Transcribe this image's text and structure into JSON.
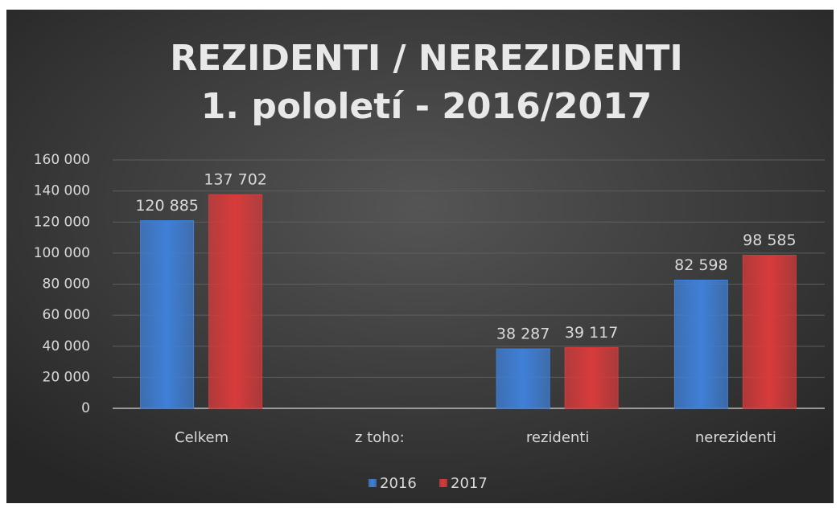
{
  "chart_data": {
    "type": "bar",
    "title": [
      "REZIDENTI / NEREZIDENTI",
      "1. pololetí - 2016/2017"
    ],
    "categories": [
      "Celkem",
      "z toho:",
      "rezidenti",
      "nerezidenti"
    ],
    "series": [
      {
        "name": "2016",
        "color": "#3f80d8",
        "values": [
          120885,
          null,
          38287,
          82598
        ],
        "value_labels": [
          "120 885",
          null,
          "38 287",
          "82 598"
        ]
      },
      {
        "name": "2017",
        "color": "#d83b3b",
        "values": [
          137702,
          null,
          39117,
          98585
        ],
        "value_labels": [
          "137 702",
          null,
          "39 117",
          "98 585"
        ]
      }
    ],
    "ylim": [
      0,
      160000
    ],
    "yticks": [
      0,
      {
        "value": 20000,
        "label": "20 000"
      },
      {
        "value": 40000,
        "label": "40 000"
      },
      {
        "value": 60000,
        "label": "60 000"
      },
      {
        "value": 80000,
        "label": "80 000"
      },
      {
        "value": 100000,
        "label": "100 000"
      },
      {
        "value": 120000,
        "label": "120 000"
      },
      {
        "value": 140000,
        "label": "140 000"
      },
      {
        "value": 160000,
        "label": "160 000"
      }
    ],
    "grid": true,
    "legend": "bottom"
  }
}
